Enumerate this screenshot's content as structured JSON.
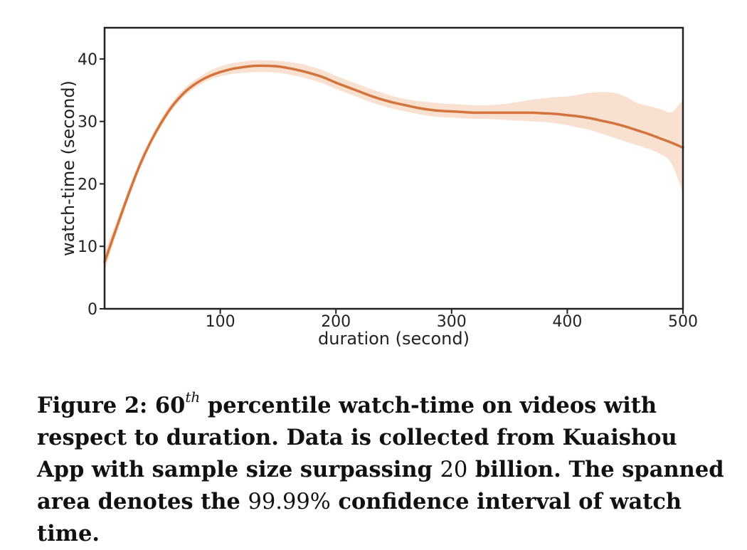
{
  "chart_data": {
    "type": "line",
    "title": "",
    "xlabel": "duration (second)",
    "ylabel": "watch-time (second)",
    "xlim": [
      0,
      500
    ],
    "ylim": [
      0,
      45
    ],
    "xticks": [
      100,
      200,
      300,
      400,
      500
    ],
    "yticks": [
      0,
      10,
      20,
      30,
      40
    ],
    "grid": false,
    "line_color": "#d4743d",
    "band_color": "#f9e1d1",
    "series": [
      {
        "x": [
          0,
          10,
          20,
          30,
          40,
          50,
          60,
          70,
          80,
          90,
          100,
          110,
          120,
          130,
          140,
          150,
          160,
          170,
          180,
          190,
          200,
          210,
          220,
          230,
          240,
          250,
          260,
          270,
          280,
          290,
          300,
          310,
          320,
          330,
          340,
          350,
          360,
          370,
          380,
          390,
          400,
          410,
          420,
          430,
          440,
          450,
          460,
          470,
          480,
          490,
          500
        ],
        "y": [
          7.5,
          12.8,
          18.0,
          22.8,
          26.8,
          30.1,
          32.8,
          34.8,
          36.2,
          37.2,
          37.9,
          38.4,
          38.7,
          38.9,
          38.9,
          38.8,
          38.5,
          38.1,
          37.6,
          37.0,
          36.2,
          35.5,
          34.8,
          34.1,
          33.5,
          33.0,
          32.6,
          32.2,
          31.9,
          31.7,
          31.6,
          31.5,
          31.4,
          31.4,
          31.4,
          31.4,
          31.4,
          31.4,
          31.3,
          31.2,
          31.0,
          30.8,
          30.5,
          30.1,
          29.7,
          29.2,
          28.6,
          28.0,
          27.3,
          26.6,
          25.8
        ],
        "lower": [
          6.0,
          11.8,
          17.2,
          22.1,
          26.2,
          29.5,
          32.2,
          34.2,
          35.6,
          36.6,
          37.2,
          37.6,
          37.8,
          37.9,
          37.9,
          37.8,
          37.5,
          37.1,
          36.6,
          36.0,
          35.2,
          34.5,
          33.8,
          33.1,
          32.5,
          32.0,
          31.6,
          31.2,
          30.9,
          30.7,
          30.6,
          30.5,
          30.4,
          30.4,
          30.3,
          30.2,
          30.1,
          30.0,
          29.9,
          29.7,
          29.4,
          29.0,
          28.6,
          28.0,
          27.4,
          26.8,
          26.2,
          25.6,
          24.8,
          23.3,
          18.5
        ],
        "upper": [
          9.0,
          13.8,
          18.8,
          23.5,
          27.4,
          30.8,
          33.5,
          35.5,
          36.9,
          38.0,
          38.8,
          39.3,
          39.6,
          39.8,
          39.8,
          39.7,
          39.5,
          39.2,
          38.7,
          38.1,
          37.3,
          36.6,
          35.9,
          35.2,
          34.6,
          34.0,
          33.6,
          33.3,
          33.1,
          32.9,
          32.8,
          32.7,
          32.6,
          32.6,
          32.7,
          32.9,
          33.2,
          33.5,
          33.7,
          33.9,
          34.0,
          34.3,
          34.6,
          34.7,
          34.6,
          34.0,
          33.0,
          32.5,
          32.0,
          31.5,
          33.5
        ]
      }
    ]
  },
  "caption": {
    "figure_label": "Figure 2: 60",
    "superscript": "th",
    "part1": " percentile watch-time on videos with respect to duration. Data is collected from Kuaishou App with sam­ple size surpassing ",
    "num1": "20",
    "part2": " billion. The spanned area denotes the ",
    "num2": "99.99%",
    "part3": " confidence interval of watch time."
  }
}
